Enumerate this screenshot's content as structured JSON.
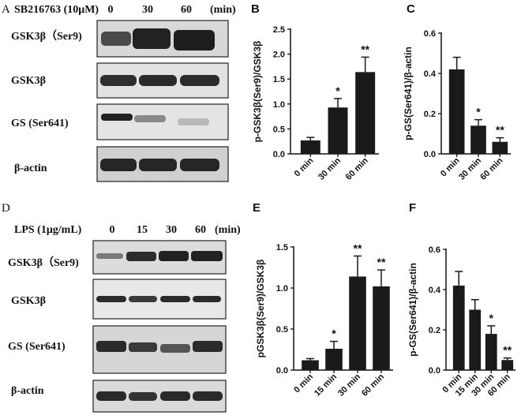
{
  "panel_letters": {
    "a": "A",
    "b": "B",
    "c": "C",
    "d": "D",
    "e": "E",
    "f": "F"
  },
  "blot_a": {
    "treatment_label": "SB216763 (10μM)",
    "time_labels": [
      "0",
      "30",
      "60"
    ],
    "unit_label": "(min)",
    "rows": [
      "GSK3β（Ser9)",
      "GSK3β",
      "GS (Ser641)",
      "β-actin"
    ]
  },
  "blot_d": {
    "treatment_label": "LPS (1μg/mL)",
    "time_labels": [
      "0",
      "15",
      "30",
      "60"
    ],
    "unit_label": "(min)",
    "rows": [
      "GSK3β（Ser9)",
      "GSK3β",
      "GS (Ser641)",
      "β-actin"
    ]
  },
  "colors": {
    "bar": "#1a1a1a",
    "blot_bg": "#e4e4e4",
    "band": "#2a2a2a"
  },
  "chart_data": [
    {
      "id": "B",
      "type": "bar",
      "categories": [
        "0 min",
        "30 min",
        "60 min"
      ],
      "values": [
        0.27,
        0.93,
        1.64
      ],
      "errors": [
        0.06,
        0.18,
        0.3
      ],
      "significance": [
        "",
        "*",
        "**"
      ],
      "ylabel": "p-GSK3β(Ser9)/GSK3β",
      "ylim": [
        0,
        2.5
      ],
      "yticks": [
        "0.0",
        "0.5",
        "1.0",
        "1.5",
        "2.0",
        "2.5"
      ]
    },
    {
      "id": "C",
      "type": "bar",
      "categories": [
        "0 min",
        "30 min",
        "60 min"
      ],
      "values": [
        0.42,
        0.14,
        0.06
      ],
      "errors": [
        0.06,
        0.03,
        0.02
      ],
      "significance": [
        "",
        "*",
        "**"
      ],
      "ylabel": "p-GS(Ser641)/β-actin",
      "ylim": [
        0,
        0.6
      ],
      "yticks": [
        "0.0",
        "0.2",
        "0.4",
        "0.6"
      ]
    },
    {
      "id": "E",
      "type": "bar",
      "categories": [
        "0 min",
        "15 min",
        "30 min",
        "60 min"
      ],
      "values": [
        0.12,
        0.26,
        1.14,
        1.02
      ],
      "errors": [
        0.02,
        0.09,
        0.25,
        0.2
      ],
      "significance": [
        "",
        "*",
        "**",
        "**"
      ],
      "ylabel": "pGSK3β(Ser9)/GSK3β",
      "ylim": [
        0,
        1.5
      ],
      "yticks": [
        "0.0",
        "0.5",
        "1.0",
        "1.5"
      ]
    },
    {
      "id": "F",
      "type": "bar",
      "categories": [
        "0 min",
        "15 min",
        "30 min",
        "60 min"
      ],
      "values": [
        0.42,
        0.3,
        0.18,
        0.05
      ],
      "errors": [
        0.07,
        0.05,
        0.04,
        0.01
      ],
      "significance": [
        "",
        "",
        "*",
        "**"
      ],
      "ylabel": "p-GS(Ser641)/β-actin",
      "ylim": [
        0,
        0.6
      ],
      "yticks": [
        "0.0",
        "0.2",
        "0.4",
        "0.6"
      ]
    }
  ]
}
